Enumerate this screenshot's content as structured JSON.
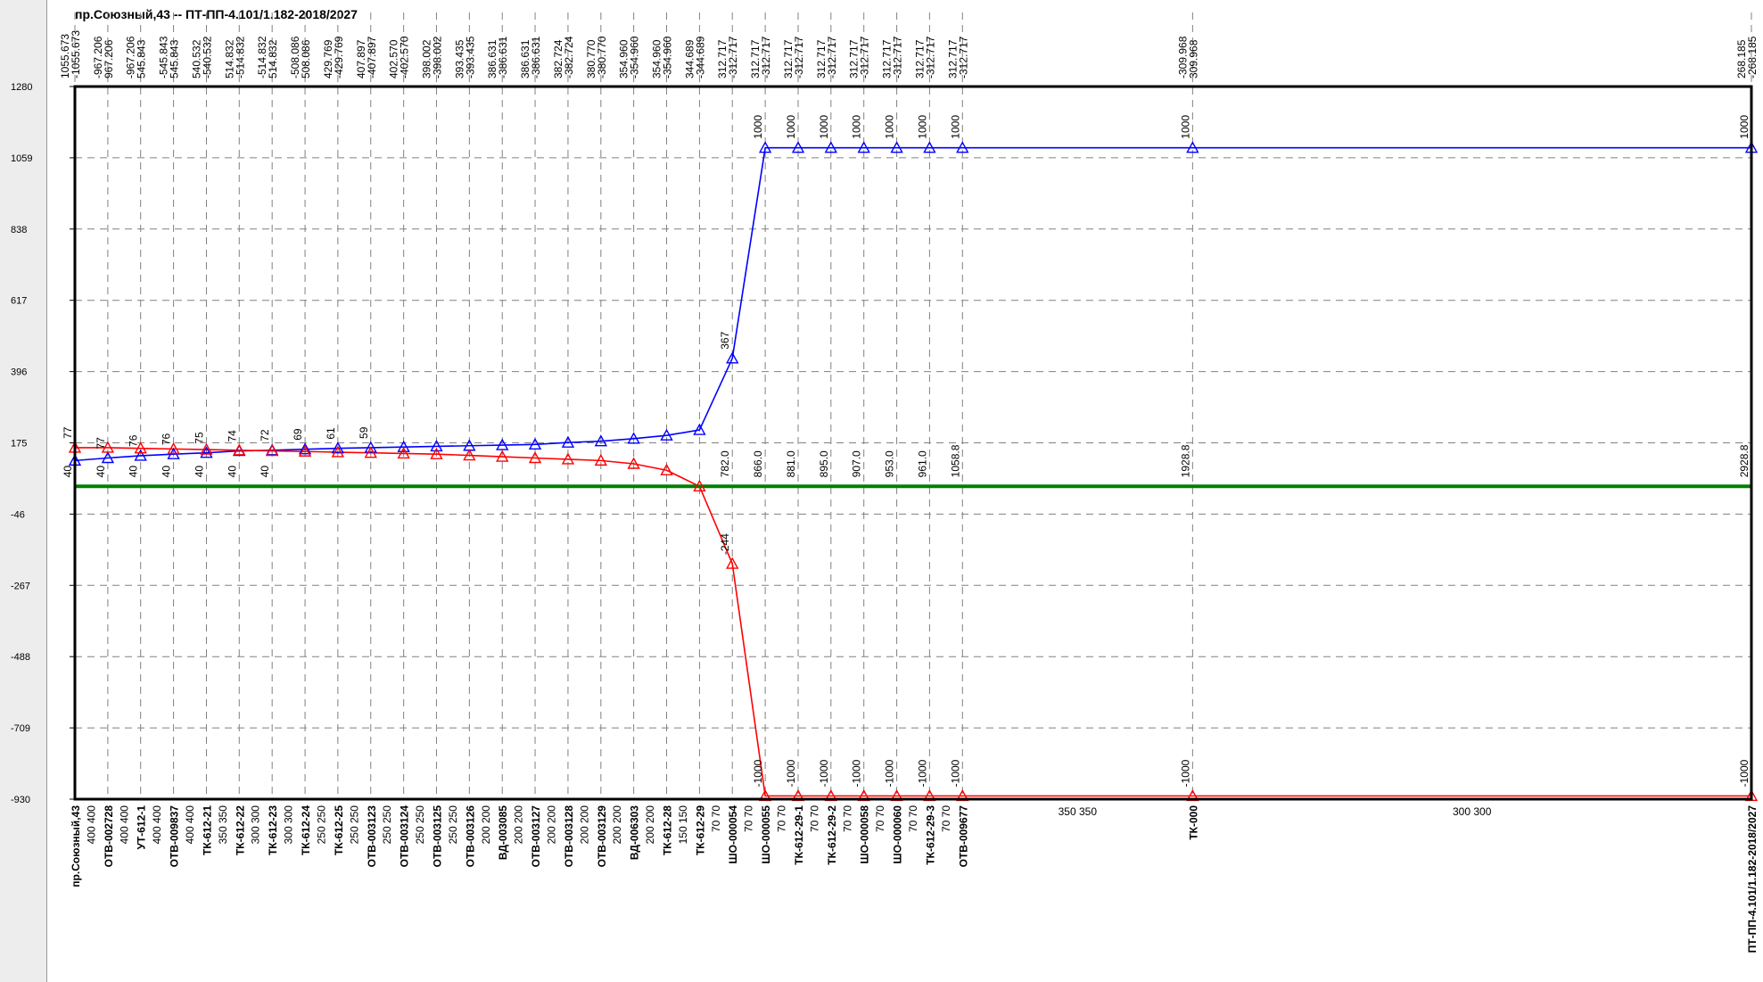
{
  "window": {
    "title": "пр.Союзный,43 -- ПТ-ПП-4.101/1.182-2018/2027"
  },
  "chart_data": {
    "type": "line",
    "title": "пр.Союзный,43 -- ПТ-ПП-4.101/1.182-2018/2027",
    "grid": true,
    "ylim": [
      -930,
      1280
    ],
    "yticks": [
      1280,
      1059,
      838,
      617,
      396,
      175,
      -46,
      -267,
      -488,
      -709,
      -930
    ],
    "colors": {
      "supply": "#0000ff",
      "return": "#ff0000",
      "baseline": "#008000",
      "frame": "#000000",
      "grid": "#808080"
    },
    "nodes": [
      {
        "label": "пр.Союзный,43",
        "top": [
          "1055.673",
          "-1055.673"
        ],
        "seg": "400  400"
      },
      {
        "label": "ОТВ-002728",
        "top": [
          "-967.206",
          "967.206"
        ],
        "seg": "400  400"
      },
      {
        "label": "УТ-612-1",
        "top": [
          "-967.206",
          "545.843"
        ],
        "seg": "400  400"
      },
      {
        "label": "ОТВ-009837",
        "top": [
          "-545.843",
          "545.843"
        ],
        "seg": "400  400"
      },
      {
        "label": "ТК-612-21",
        "top": [
          "540.532",
          "-540.532"
        ],
        "seg": "350  350"
      },
      {
        "label": "ТК-612-22",
        "top": [
          "514.832",
          "-514.832"
        ],
        "seg": "300  300"
      },
      {
        "label": "ТК-612-23",
        "top": [
          "-514.832",
          "514.832"
        ],
        "seg": "300  300"
      },
      {
        "label": "ТК-612-24",
        "top": [
          "-508.086",
          "508.086"
        ],
        "seg": "250  250"
      },
      {
        "label": "ТК-612-25",
        "top": [
          "429.769",
          "-429.769"
        ],
        "seg": "250  250"
      },
      {
        "label": "ОТВ-003123",
        "top": [
          "407.897",
          "-407.897"
        ],
        "seg": "250  250"
      },
      {
        "label": "ОТВ-003124",
        "top": [
          "402.570",
          "-402.570"
        ],
        "seg": "250  250"
      },
      {
        "label": "ОТВ-003125",
        "top": [
          "398.002",
          "-398.002"
        ],
        "seg": "250  250"
      },
      {
        "label": "ОТВ-003126",
        "top": [
          "393.435",
          "-393.435"
        ],
        "seg": "200  200"
      },
      {
        "label": "ВД-003085",
        "top": [
          "386.631",
          "-386.631"
        ],
        "seg": "200  200"
      },
      {
        "label": "ОТВ-003127",
        "top": [
          "386.631",
          "-386.631"
        ],
        "seg": "200  200"
      },
      {
        "label": "ОТВ-003128",
        "top": [
          "382.724",
          "-382.724"
        ],
        "seg": "200  200"
      },
      {
        "label": "ОТВ-003129",
        "top": [
          "380.770",
          "-380.770"
        ],
        "seg": "200  200"
      },
      {
        "label": "ВД-006303",
        "top": [
          "354.960",
          "-354.960"
        ],
        "seg": "200  200"
      },
      {
        "label": "ТК-612-28",
        "top": [
          "354.960",
          "-354.960"
        ],
        "seg": "150  150"
      },
      {
        "label": "ТК-612-29",
        "top": [
          "344.689",
          "-344.689"
        ],
        "seg": "70  70"
      },
      {
        "label": "ШО-000054",
        "top": [
          "312.717",
          "-312.717"
        ],
        "seg": "70  70"
      },
      {
        "label": "ШО-000055",
        "top": [
          "312.717",
          "-312.717"
        ],
        "seg": "70  70"
      },
      {
        "label": "ТК-612-29-1",
        "top": [
          "312.717",
          "-312.717"
        ],
        "seg": "70  70"
      },
      {
        "label": "ТК-612-29-2",
        "top": [
          "312.717",
          "-312.717"
        ],
        "seg": "70  70"
      },
      {
        "label": "ШО-000058",
        "top": [
          "312.717",
          "-312.717"
        ],
        "seg": "70  70"
      },
      {
        "label": "ШО-000060",
        "top": [
          "312.717",
          "-312.717"
        ],
        "seg": "70  70"
      },
      {
        "label": "ТК-612-29-3",
        "top": [
          "312.717",
          "-312.717"
        ],
        "seg": "70  70"
      },
      {
        "label": "ОТВ-009677",
        "top": [
          "312.717",
          "-312.717"
        ],
        "seg": "350  350"
      },
      {
        "label": "ТК-000",
        "top": [
          "-309.968",
          "309.968"
        ],
        "seg": "300  300"
      },
      {
        "label": "ПТ-ПП-4.101/1.182-2018/2027",
        "top": [
          "268.185",
          "-268.185"
        ],
        "seg": ""
      }
    ],
    "x": [
      0,
      36.7,
      73.3,
      110,
      146.7,
      183.3,
      220,
      256.7,
      293.3,
      330,
      366.7,
      403.3,
      440,
      476.7,
      513.3,
      550,
      586.7,
      623.3,
      660,
      696.7,
      733.3,
      770,
      806.7,
      843.3,
      880,
      916.7,
      953.3,
      990,
      1246.7,
      1870
    ],
    "series": [
      {
        "key": "supply",
        "values": [
          120,
          128,
          135,
          140,
          144,
          150,
          152,
          155,
          158,
          160,
          162,
          164,
          166,
          168,
          170,
          176,
          180,
          188,
          198,
          215,
          437,
          1090,
          1090,
          1090,
          1090,
          1090,
          1090,
          1090,
          1090,
          1090
        ],
        "labels": [
          "",
          "77",
          "76",
          "76",
          "75",
          "74",
          "72",
          "69",
          "61",
          "59",
          "",
          "",
          "",
          "",
          "",
          "",
          "",
          "",
          "",
          "",
          "367",
          "1000",
          "1000",
          "1000",
          "1000",
          "1000",
          "1000",
          "1000",
          "1000",
          "1000"
        ]
      },
      {
        "key": "return",
        "values": [
          160,
          160,
          158,
          156,
          154,
          152,
          150,
          148,
          146,
          144,
          142,
          140,
          136,
          132,
          128,
          124,
          120,
          110,
          90,
          40,
          -200,
          -920,
          -920,
          -920,
          -920,
          -920,
          -920,
          -920,
          -920,
          -920
        ],
        "labels": [
          "77",
          "",
          "",
          "",
          "",
          "",
          "",
          "",
          "",
          "",
          "",
          "",
          "",
          "",
          "",
          "",
          "",
          "",
          "",
          "",
          "-244",
          "-1000",
          "-1000",
          "-1000",
          "-1000",
          "-1000",
          "-1000",
          "-1000",
          "-1000",
          "-1000"
        ]
      },
      {
        "key": "baseline",
        "values": [
          40,
          40,
          40,
          40,
          40,
          40,
          40,
          40,
          40,
          40,
          40,
          40,
          40,
          40,
          40,
          40,
          40,
          40,
          40,
          40,
          40,
          40,
          40,
          40,
          40,
          40,
          40,
          40,
          40,
          40
        ],
        "labels": [
          "40",
          "40",
          "40",
          "40",
          "40",
          "40",
          "40",
          "",
          "",
          "",
          "",
          "",
          "",
          "",
          "",
          "",
          "",
          "",
          "",
          "",
          "782.0",
          "866.0",
          "881.0",
          "895.0",
          "907.0",
          "953.0",
          "961.0",
          "1058.8",
          "1928.8",
          "2928.8"
        ]
      }
    ]
  }
}
